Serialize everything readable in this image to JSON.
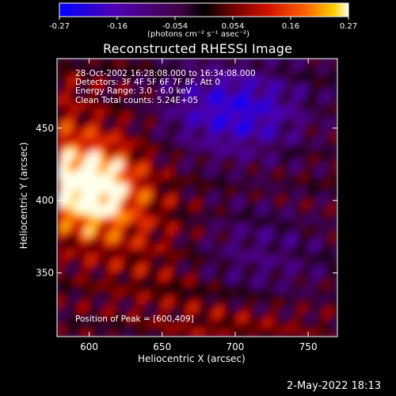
{
  "colorbar": {
    "ticks": [
      "-0.27",
      "-0.16",
      "-0.054",
      "0.054",
      "0.16",
      "0.27"
    ],
    "units": "(photons cm⁻² s⁻¹ asec⁻²)",
    "min": -0.27,
    "max": 0.27,
    "colors": [
      "#0000ff",
      "#5500aa",
      "#440044",
      "#000000",
      "#660000",
      "#cc1100",
      "#ff5500",
      "#ffcc00",
      "#ffffee"
    ]
  },
  "chart_data": {
    "type": "heatmap",
    "title": "Reconstructed RHESSI Image",
    "xlabel": "Heliocentric X (arcsec)",
    "ylabel": "Heliocentric Y (arcsec)",
    "xlim": [
      578,
      770
    ],
    "ylim": [
      306,
      498
    ],
    "x_ticks": [
      600,
      650,
      700,
      750
    ],
    "y_ticks": [
      350,
      400,
      450
    ],
    "x_tick_labels": [
      "600",
      "650",
      "700",
      "750"
    ],
    "y_tick_labels": [
      "350",
      "400",
      "450"
    ],
    "annotations": [
      "28-Oct-2002 16:28:08.000 to 16:34:08.000",
      "Detectors: 3F 4F 5F 6F 7F 8F, Att 0",
      "Energy Range: 3.0 - 6.0 keV",
      "Clean    Total counts: 5.24E+05"
    ],
    "peak_label": "Position of Peak = [600,409]",
    "peak": [
      600,
      409
    ],
    "value_range": [
      -0.27,
      0.27
    ]
  },
  "footer": {
    "timestamp": "2-May-2022 18:13"
  }
}
